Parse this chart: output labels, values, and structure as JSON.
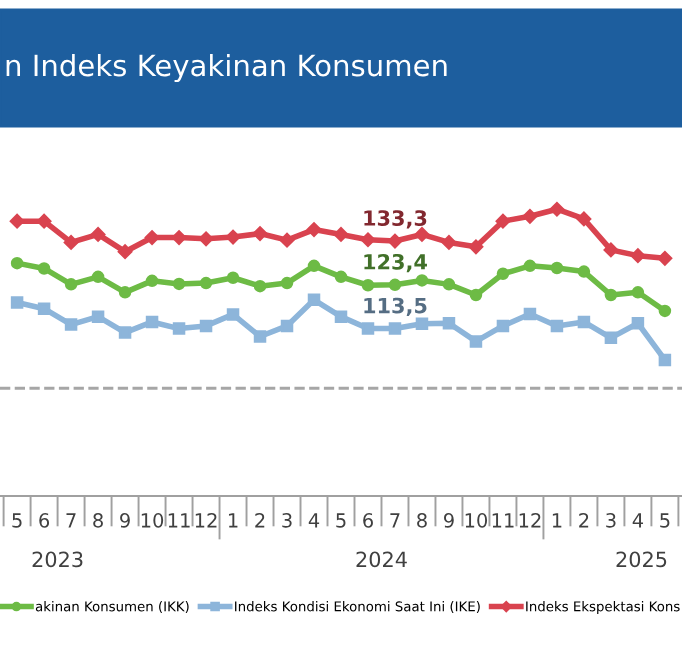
{
  "chart_data": {
    "type": "line",
    "title": "n Indeks Keyakinan Konsumen",
    "x": [
      "2023-05",
      "2023-06",
      "2023-07",
      "2023-08",
      "2023-09",
      "2023-10",
      "2023-11",
      "2023-12",
      "2024-01",
      "2024-02",
      "2024-03",
      "2024-04",
      "2024-05",
      "2024-06",
      "2024-07",
      "2024-08",
      "2024-09",
      "2024-10",
      "2024-11",
      "2024-12",
      "2025-01",
      "2025-02",
      "2025-03",
      "2025-04",
      "2025-05"
    ],
    "xlim": [
      "2023-04-12",
      "2025-05-20"
    ],
    "xticks": [
      {
        "value": "2023-05",
        "label": "5"
      },
      {
        "value": "2023-06",
        "label": "6"
      },
      {
        "value": "2023-07",
        "label": "7"
      },
      {
        "value": "2023-08",
        "label": "8"
      },
      {
        "value": "2023-09",
        "label": "9"
      },
      {
        "value": "2023-10",
        "label": "10"
      },
      {
        "value": "2023-11",
        "label": "11"
      },
      {
        "value": "2023-12",
        "label": "12"
      },
      {
        "value": "2024-01",
        "label": "1"
      },
      {
        "value": "2024-02",
        "label": "2"
      },
      {
        "value": "2024-03",
        "label": "3"
      },
      {
        "value": "2024-04",
        "label": "4"
      },
      {
        "value": "2024-05",
        "label": "5"
      },
      {
        "value": "2024-06",
        "label": "6"
      },
      {
        "value": "2024-07",
        "label": "7"
      },
      {
        "value": "2024-08",
        "label": "8"
      },
      {
        "value": "2024-09",
        "label": "9"
      },
      {
        "value": "2024-10",
        "label": "10"
      },
      {
        "value": "2024-11",
        "label": "11"
      },
      {
        "value": "2024-12",
        "label": "12"
      },
      {
        "value": "2025-01",
        "label": "1"
      },
      {
        "value": "2025-02",
        "label": "2"
      },
      {
        "value": "2025-03",
        "label": "3"
      },
      {
        "value": "2025-04",
        "label": "4"
      },
      {
        "value": "2025-05",
        "label": "5"
      }
    ],
    "annotations": [
      "2023",
      "2024",
      "2025"
    ],
    "tick_labels": "x",
    "grid": false,
    "legend": "bottom",
    "line_style": "solid",
    "series": [
      {
        "name": "akinan Konsumen (IKK)",
        "color": "#6dbb45",
        "marker": "circle",
        "values": [
          128.3,
          127.1,
          123.5,
          125.2,
          121.7,
          124.3,
          123.6,
          123.8,
          125.0,
          123.1,
          123.8,
          127.7,
          125.2,
          123.3,
          123.4,
          124.4,
          123.5,
          121.1,
          125.9,
          127.7,
          127.2,
          126.4,
          121.1,
          121.7,
          117.5
        ],
        "value_labels": [
          null,
          null,
          null,
          null,
          null,
          null,
          null,
          null,
          null,
          null,
          null,
          null,
          null,
          null,
          "123,4",
          null,
          null,
          null,
          null,
          null,
          null,
          null,
          null,
          null,
          null
        ]
      },
      {
        "name": "Indeks Kondisi Ekonomi Saat Ini (IKE)",
        "color": "#8db5da",
        "marker": "square",
        "values": [
          119.4,
          118.0,
          114.4,
          116.2,
          112.6,
          115.0,
          113.5,
          114.1,
          116.7,
          111.7,
          114.1,
          120.0,
          116.2,
          113.5,
          113.5,
          114.6,
          114.7,
          110.6,
          114.1,
          116.8,
          114.1,
          115.0,
          111.4,
          114.7,
          106.4
        ],
        "value_labels": [
          null,
          null,
          null,
          null,
          null,
          null,
          null,
          null,
          null,
          null,
          null,
          null,
          null,
          null,
          "113,5",
          null,
          null,
          null,
          null,
          null,
          null,
          null,
          null,
          null,
          null
        ]
      },
      {
        "name": "Indeks Ekspektasi Kons",
        "color": "#d9434f",
        "marker": "diamond",
        "values": [
          137.8,
          137.8,
          133.0,
          134.8,
          130.9,
          134.1,
          134.1,
          133.8,
          134.2,
          135.0,
          133.5,
          135.9,
          134.8,
          133.6,
          133.3,
          134.8,
          133.0,
          132.0,
          137.8,
          138.9,
          140.5,
          138.3,
          131.3,
          130.0,
          129.4
        ],
        "value_labels": [
          null,
          null,
          null,
          null,
          null,
          null,
          null,
          null,
          null,
          null,
          null,
          null,
          null,
          null,
          "133,3",
          null,
          null,
          null,
          null,
          null,
          null,
          null,
          null,
          null,
          null
        ]
      }
    ],
    "ref_lines": [
      {
        "axis": "y",
        "value": 100,
        "color": "#a6a6a6",
        "line_style": "dashed"
      }
    ]
  }
}
